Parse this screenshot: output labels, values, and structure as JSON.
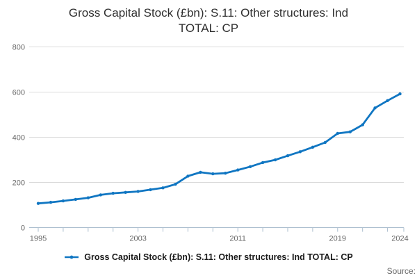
{
  "title": {
    "line1": "Gross Capital Stock (£bn): S.11: Other structures: Ind",
    "line2": "TOTAL: CP"
  },
  "legend": {
    "label": "Gross Capital Stock (£bn): S.11: Other structures: Ind TOTAL: CP"
  },
  "source_label": "Source:",
  "colors": {
    "line": "#1076c2",
    "grid": "#dadada",
    "axis": "#a9bccd",
    "axis_text": "#666666",
    "title_text": "#2e2e2e",
    "legend_text": "#1a1a1a",
    "source_text": "#6b6b6b"
  },
  "chart_data": {
    "type": "line",
    "title": "Gross Capital Stock (£bn): S.11: Other structures: Ind TOTAL: CP",
    "xlabel": "",
    "ylabel": "",
    "x": [
      1995,
      1996,
      1997,
      1998,
      1999,
      2000,
      2001,
      2002,
      2003,
      2004,
      2005,
      2006,
      2007,
      2008,
      2009,
      2010,
      2011,
      2012,
      2013,
      2014,
      2015,
      2016,
      2017,
      2018,
      2019,
      2020,
      2021,
      2022,
      2023,
      2024
    ],
    "values": [
      107,
      112,
      118,
      125,
      132,
      145,
      152,
      156,
      160,
      168,
      176,
      192,
      228,
      245,
      238,
      241,
      255,
      270,
      288,
      300,
      318,
      336,
      356,
      377,
      417,
      424,
      455,
      530,
      562,
      592
    ],
    "xlim": [
      1995,
      2024
    ],
    "ylim": [
      0,
      800
    ],
    "yticks": [
      0,
      200,
      400,
      600,
      800
    ],
    "xticks_labeled": [
      1995,
      2003,
      2011,
      2019,
      2024
    ],
    "xticks_minor_step": 2,
    "grid": true,
    "legend_position": "bottom",
    "marker": "dot"
  }
}
